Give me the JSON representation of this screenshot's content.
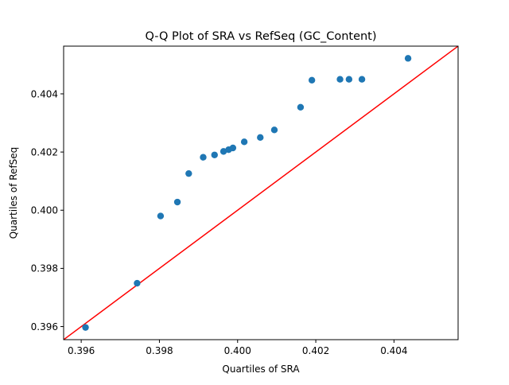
{
  "chart_data": {
    "type": "scatter",
    "title": "Q-Q Plot of SRA vs RefSeq (GC_Content)",
    "xlabel": "Quartiles of SRA",
    "ylabel": "Quartiles of RefSeq",
    "xlim": [
      0.39555,
      0.40564
    ],
    "ylim": [
      0.39555,
      0.40564
    ],
    "x_ticks": [
      0.396,
      0.398,
      0.4,
      0.402,
      0.404
    ],
    "x_tick_labels": [
      "0.396",
      "0.398",
      "0.400",
      "0.402",
      "0.404"
    ],
    "y_ticks": [
      0.396,
      0.398,
      0.4,
      0.402,
      0.404
    ],
    "y_tick_labels": [
      "0.396",
      "0.398",
      "0.400",
      "0.402",
      "0.404"
    ],
    "grid": false,
    "series": [
      {
        "color": "#1f77b4",
        "points": [
          {
            "x": 0.39611,
            "y": 0.39597
          },
          {
            "x": 0.39743,
            "y": 0.39749
          },
          {
            "x": 0.39803,
            "y": 0.3998
          },
          {
            "x": 0.39846,
            "y": 0.40028
          },
          {
            "x": 0.39875,
            "y": 0.40126
          },
          {
            "x": 0.39912,
            "y": 0.40182
          },
          {
            "x": 0.39941,
            "y": 0.4019
          },
          {
            "x": 0.39964,
            "y": 0.40202
          },
          {
            "x": 0.39977,
            "y": 0.40208
          },
          {
            "x": 0.39988,
            "y": 0.40214
          },
          {
            "x": 0.40017,
            "y": 0.40235
          },
          {
            "x": 0.40058,
            "y": 0.4025
          },
          {
            "x": 0.40094,
            "y": 0.40276
          },
          {
            "x": 0.40161,
            "y": 0.40354
          },
          {
            "x": 0.4019,
            "y": 0.40447
          },
          {
            "x": 0.40262,
            "y": 0.4045
          },
          {
            "x": 0.40285,
            "y": 0.4045
          },
          {
            "x": 0.40318,
            "y": 0.4045
          },
          {
            "x": 0.40436,
            "y": 0.40522
          }
        ]
      }
    ],
    "reference_line": {
      "from": [
        0.39555,
        0.39555
      ],
      "to": [
        0.40564,
        0.40564
      ],
      "color": "#ff0000"
    }
  }
}
